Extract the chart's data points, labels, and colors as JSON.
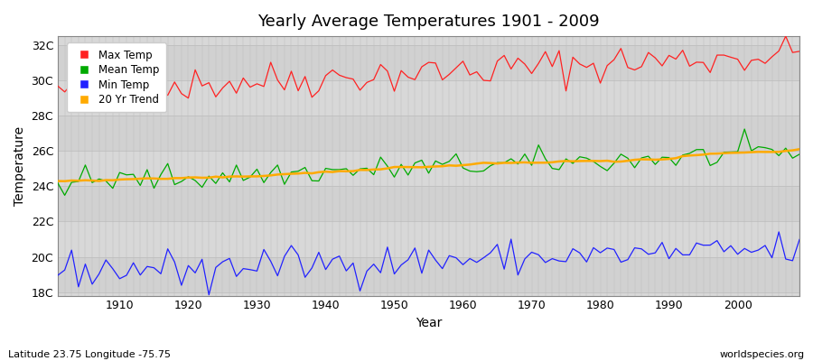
{
  "title": "Yearly Average Temperatures 1901 - 2009",
  "xlabel": "Year",
  "ylabel": "Temperature",
  "start_year": 1901,
  "end_year": 2009,
  "yticks": [
    18,
    20,
    22,
    24,
    26,
    28,
    30,
    32
  ],
  "ytick_labels": [
    "18C",
    "20C",
    "22C",
    "24C",
    "26C",
    "28C",
    "30C",
    "32C"
  ],
  "xticks": [
    1910,
    1920,
    1930,
    1940,
    1950,
    1960,
    1970,
    1980,
    1990,
    2000
  ],
  "ylim": [
    17.8,
    32.5
  ],
  "xlim": [
    1901,
    2009
  ],
  "bg_color": "#d8d8d8",
  "band_color": "#cccccc",
  "grid_color": "#bbbbbb",
  "fig_color": "#ffffff",
  "max_color": "#ff2222",
  "mean_color": "#00aa00",
  "min_color": "#2222ff",
  "trend_color": "#ffaa00",
  "legend_labels": [
    "Max Temp",
    "Mean Temp",
    "Min Temp",
    "20 Yr Trend"
  ],
  "subtitle_left": "Latitude 23.75 Longitude -75.75",
  "subtitle_right": "worldspecies.org"
}
